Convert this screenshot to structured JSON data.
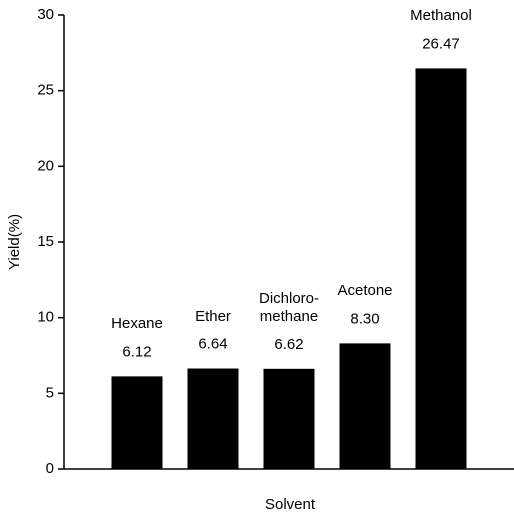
{
  "chart_data": {
    "type": "bar",
    "x_label": "Solvent",
    "y_label": "Yield(%)",
    "categories": [
      "Hexane",
      "Ether",
      "Dichloro-\nmethane",
      "Acetone",
      "Methanol"
    ],
    "values": [
      6.12,
      6.64,
      6.62,
      8.3,
      26.47
    ],
    "value_labels": [
      "6.12",
      "6.64",
      "6.62",
      "8.30",
      "26.47"
    ],
    "color": "#000000",
    "ylim": [
      0,
      30
    ],
    "yticks": [
      0,
      5,
      10,
      15,
      20,
      25,
      30
    ]
  }
}
